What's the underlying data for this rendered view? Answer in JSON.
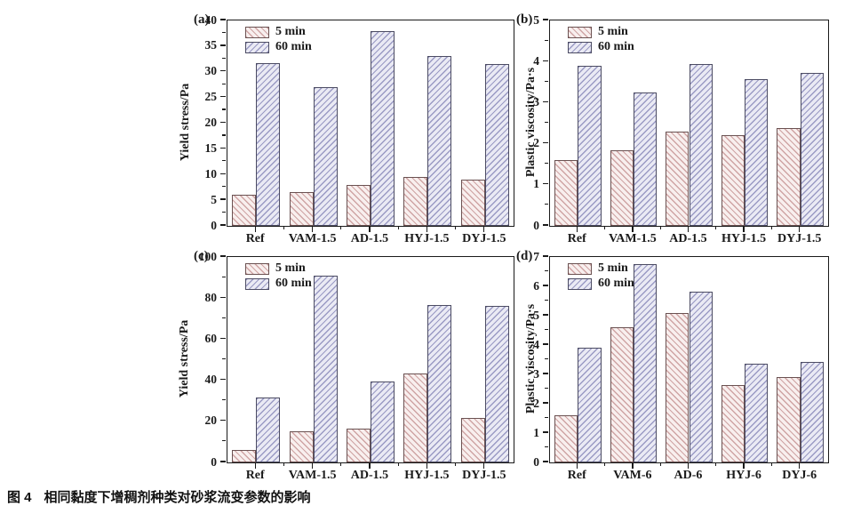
{
  "figure": {
    "caption": {
      "label": "图 4",
      "text": "相同黏度下增稠剂种类对砂浆流变参数的影响"
    },
    "legend_labels": [
      "5 min",
      "60 min"
    ],
    "colors": {
      "axis": "#1a1a1a",
      "series_5min": {
        "fill": "#f8efee",
        "hatch": "#cfa4a4",
        "edge": "#6b5252"
      },
      "series_60min": {
        "fill": "#eaeaf4",
        "hatch": "#9a9ac4",
        "edge": "#4c4c63"
      }
    }
  },
  "chart_data": [
    {
      "id": "a",
      "type": "bar",
      "panel": "(a)",
      "title": "",
      "xlabel": "",
      "ylabel": "Yield stress/Pa",
      "ylim": [
        0,
        40
      ],
      "yticks": [
        0,
        5,
        10,
        15,
        20,
        25,
        30,
        35,
        40
      ],
      "grid": false,
      "legend_position": "upper-left",
      "categories": [
        "Ref",
        "VAM-1.5",
        "AD-1.5",
        "HYJ-1.5",
        "DYJ-1.5"
      ],
      "series": [
        {
          "name": "5 min",
          "values": [
            6.0,
            6.6,
            7.9,
            9.5,
            9.0
          ]
        },
        {
          "name": "60 min",
          "values": [
            31.7,
            27.0,
            38.0,
            33.0,
            31.5
          ]
        }
      ]
    },
    {
      "id": "b",
      "type": "bar",
      "panel": "(b)",
      "title": "",
      "xlabel": "",
      "ylabel": "Plastic viscosity/Pa·s",
      "ylim": [
        0,
        5
      ],
      "yticks": [
        0,
        1,
        2,
        3,
        4,
        5
      ],
      "grid": false,
      "legend_position": "upper-left",
      "categories": [
        "Ref",
        "VAM-1.5",
        "AD-1.5",
        "HYJ-1.5",
        "DYJ-1.5"
      ],
      "series": [
        {
          "name": "5 min",
          "values": [
            1.6,
            1.83,
            2.3,
            2.21,
            2.38
          ]
        },
        {
          "name": "60 min",
          "values": [
            3.9,
            3.25,
            3.94,
            3.58,
            3.72
          ]
        }
      ]
    },
    {
      "id": "c",
      "type": "bar",
      "panel": "(c)",
      "title": "",
      "xlabel": "",
      "ylabel": "Yield stress/Pa",
      "ylim": [
        0,
        100
      ],
      "yticks": [
        0,
        20,
        40,
        60,
        80,
        100
      ],
      "grid": false,
      "legend_position": "upper-left",
      "categories": [
        "Ref",
        "VAM-1.5",
        "AD-1.5",
        "HYJ-1.5",
        "DYJ-1.5"
      ],
      "series": [
        {
          "name": "5 min",
          "values": [
            6.0,
            15.0,
            16.5,
            43.5,
            21.5
          ]
        },
        {
          "name": "60 min",
          "values": [
            31.5,
            91.0,
            39.5,
            76.5,
            76.0
          ]
        }
      ]
    },
    {
      "id": "d",
      "type": "bar",
      "panel": "(d)",
      "title": "",
      "xlabel": "",
      "ylabel": "Plastic viscosity/Pa·s",
      "ylim": [
        0,
        7
      ],
      "yticks": [
        0,
        1,
        2,
        3,
        4,
        5,
        6,
        7
      ],
      "grid": false,
      "legend_position": "upper-left",
      "categories": [
        "Ref",
        "VAM-6",
        "AD-6",
        "HYJ-6",
        "DYJ-6"
      ],
      "series": [
        {
          "name": "5 min",
          "values": [
            1.6,
            4.62,
            5.08,
            2.63,
            2.91
          ]
        },
        {
          "name": "60 min",
          "values": [
            3.9,
            6.77,
            5.82,
            3.35,
            3.43
          ]
        }
      ]
    }
  ]
}
